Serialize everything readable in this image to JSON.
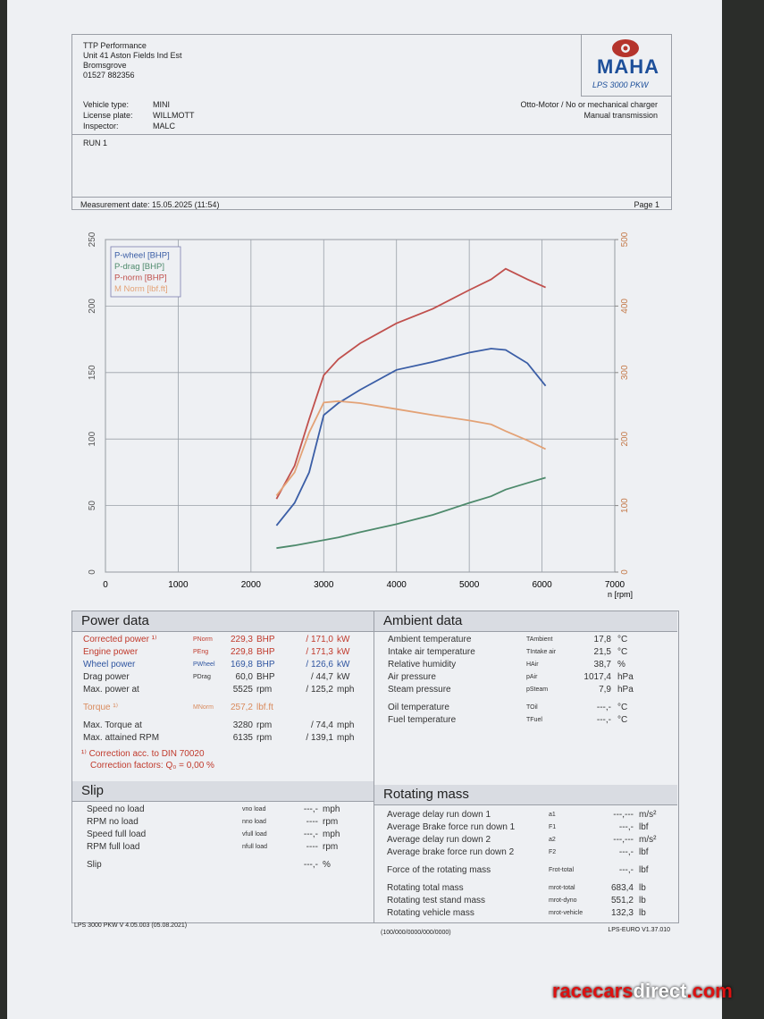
{
  "header": {
    "company": [
      "TTP Performance",
      "Unit 41 Aston Fields Ind Est",
      "Bromsgrove",
      "01527 882356"
    ],
    "logo": "MAHA",
    "model": "LPS 3000 PKW"
  },
  "vehicle": [
    {
      "label": "Vehicle type:",
      "value": "MINI"
    },
    {
      "label": "License plate:",
      "value": "WILLMOTT"
    },
    {
      "label": "Inspector:",
      "value": "MALC"
    }
  ],
  "engine": [
    "Otto-Motor / No or mechanical charger",
    "Manual transmission"
  ],
  "run": "RUN 1",
  "measurement_date": "Measurement date: 15.05.2025 (11:54)",
  "page": "Page 1",
  "chart_data": {
    "type": "line",
    "x_label": "n [rpm]",
    "x": [
      2350,
      2600,
      2800,
      3000,
      3200,
      3500,
      4000,
      4500,
      5000,
      5300,
      5500,
      5800,
      6050
    ],
    "xlim": [
      0,
      7000
    ],
    "xticks": [
      0,
      1000,
      2000,
      3000,
      4000,
      5000,
      6000,
      7000
    ],
    "ylim": [
      0,
      250
    ],
    "yticks": [
      0,
      50,
      100,
      150,
      200,
      250
    ],
    "y2lim": [
      0,
      500
    ],
    "y2ticks": [
      0,
      100,
      200,
      300,
      400,
      500
    ],
    "grid": true,
    "legend": "top-left",
    "series": [
      {
        "name": "P-wheel [BHP]",
        "color": "#3b5ea6",
        "values": [
          35,
          52,
          75,
          118,
          127,
          137,
          152,
          158,
          165,
          168,
          167,
          157,
          140
        ]
      },
      {
        "name": "P-drag [BHP]",
        "color": "#4e8a6c",
        "values": [
          18,
          20,
          22,
          24,
          26,
          30,
          36,
          43,
          52,
          57,
          62,
          67,
          71
        ]
      },
      {
        "name": "P-norm [BHP]",
        "color": "#c0504d",
        "values": [
          55,
          80,
          115,
          148,
          160,
          172,
          187,
          198,
          212,
          220,
          228,
          220,
          214
        ]
      },
      {
        "name": "M Norm [lbf.ft]",
        "color": "#e3a276",
        "axis": "y2",
        "values": [
          115,
          150,
          210,
          255,
          257,
          254,
          245,
          236,
          228,
          222,
          212,
          198,
          185
        ]
      }
    ]
  },
  "power_data": {
    "title": "Power data",
    "rows": [
      {
        "label": "Corrected power ¹⁾",
        "symbol": "PNorm",
        "value": "229,3",
        "unit": "BHP",
        "value2": "/ 171,0",
        "unit2": "kW",
        "color": "#c0392b"
      },
      {
        "label": "Engine power",
        "symbol": "PEng",
        "value": "229,8",
        "unit": "BHP",
        "value2": "/ 171,3",
        "unit2": "kW",
        "color": "#c0392b"
      },
      {
        "label": "Wheel power",
        "symbol": "PWheel",
        "value": "169,8",
        "unit": "BHP",
        "value2": "/ 126,6",
        "unit2": "kW",
        "color": "#2f55a0"
      },
      {
        "label": "Drag power",
        "symbol": "PDrag",
        "value": "60,0",
        "unit": "BHP",
        "value2": "/ 44,7",
        "unit2": "kW",
        "color": "#333333"
      },
      {
        "label": "Max. power at",
        "value": "5525",
        "unit": "rpm",
        "value2": "/ 125,2",
        "unit2": "mph",
        "color": "#333333"
      },
      {
        "label": "Torque ¹⁾",
        "symbol": "MNorm",
        "value": "257,2",
        "unit": "lbf.ft",
        "color": "#d98a5c"
      },
      {
        "label": "Max. Torque at",
        "value": "3280",
        "unit": "rpm",
        "value2": "/ 74,4",
        "unit2": "mph",
        "color": "#333333"
      },
      {
        "label": "Max. attained RPM",
        "value": "6135",
        "unit": "rpm",
        "value2": "/ 139,1",
        "unit2": "mph",
        "color": "#333333"
      }
    ],
    "notes": [
      "¹⁾ Correction acc. to DIN 70020",
      "Correction factors: Q₀ = 0,00 %"
    ]
  },
  "ambient_data": {
    "title": "Ambient data",
    "rows": [
      {
        "label": "Ambient temperature",
        "symbol": "TAmbient",
        "value": "17,8",
        "unit": "°C"
      },
      {
        "label": "Intake air temperature",
        "symbol": "TIntake air",
        "value": "21,5",
        "unit": "°C"
      },
      {
        "label": "Relative humidity",
        "symbol": "HAir",
        "value": "38,7",
        "unit": "%"
      },
      {
        "label": "Air pressure",
        "symbol": "pAir",
        "value": "1017,4",
        "unit": "hPa"
      },
      {
        "label": "Steam pressure",
        "symbol": "pSteam",
        "value": "7,9",
        "unit": "hPa"
      },
      {
        "label": "Oil temperature",
        "symbol": "TOil",
        "value": "---,-",
        "unit": "°C"
      },
      {
        "label": "Fuel temperature",
        "symbol": "TFuel",
        "value": "---,-",
        "unit": "°C"
      }
    ]
  },
  "slip": {
    "title": "Slip",
    "rows": [
      {
        "label": "Speed no load",
        "symbol": "vno load",
        "value": "---,-",
        "unit": "mph"
      },
      {
        "label": "RPM no load",
        "symbol": "nno load",
        "value": "----",
        "unit": "rpm"
      },
      {
        "label": "Speed full load",
        "symbol": "vfull load",
        "value": "---,-",
        "unit": "mph"
      },
      {
        "label": "RPM full load",
        "symbol": "nfull load",
        "value": "----",
        "unit": "rpm"
      },
      {
        "label": "Slip",
        "value": "---,-",
        "unit": "%"
      }
    ]
  },
  "rotating_mass": {
    "title": "Rotating mass",
    "rows": [
      {
        "label": "Average delay run down 1",
        "symbol": "a1",
        "value": "---,---",
        "unit": "m/s²"
      },
      {
        "label": "Average Brake force run down 1",
        "symbol": "F1",
        "value": "---,-",
        "unit": "lbf"
      },
      {
        "label": "Average delay run down 2",
        "symbol": "a2",
        "value": "---,---",
        "unit": "m/s²"
      },
      {
        "label": "Average brake force run down 2",
        "symbol": "F2",
        "value": "---,-",
        "unit": "lbf"
      },
      {
        "label": "Force of the rotating mass",
        "symbol": "Frot-total",
        "value": "---,-",
        "unit": "lbf"
      },
      {
        "label": "Rotating total mass",
        "symbol": "mrot-total",
        "value": "683,4",
        "unit": "lb"
      },
      {
        "label": "Rotating test stand mass",
        "symbol": "mrot-dyno",
        "value": "551,2",
        "unit": "lb"
      },
      {
        "label": "Rotating vehicle mass",
        "symbol": "mrot-vehicle",
        "value": "132,3",
        "unit": "lb"
      }
    ]
  },
  "footer": [
    "LPS 3000 PKW V 4.05.003 (05.08.2021)",
    "(100/000/0000/000/0000)",
    "LPS-EURO V1.37.010"
  ],
  "watermark": [
    "racecars",
    "direct",
    ".com"
  ]
}
